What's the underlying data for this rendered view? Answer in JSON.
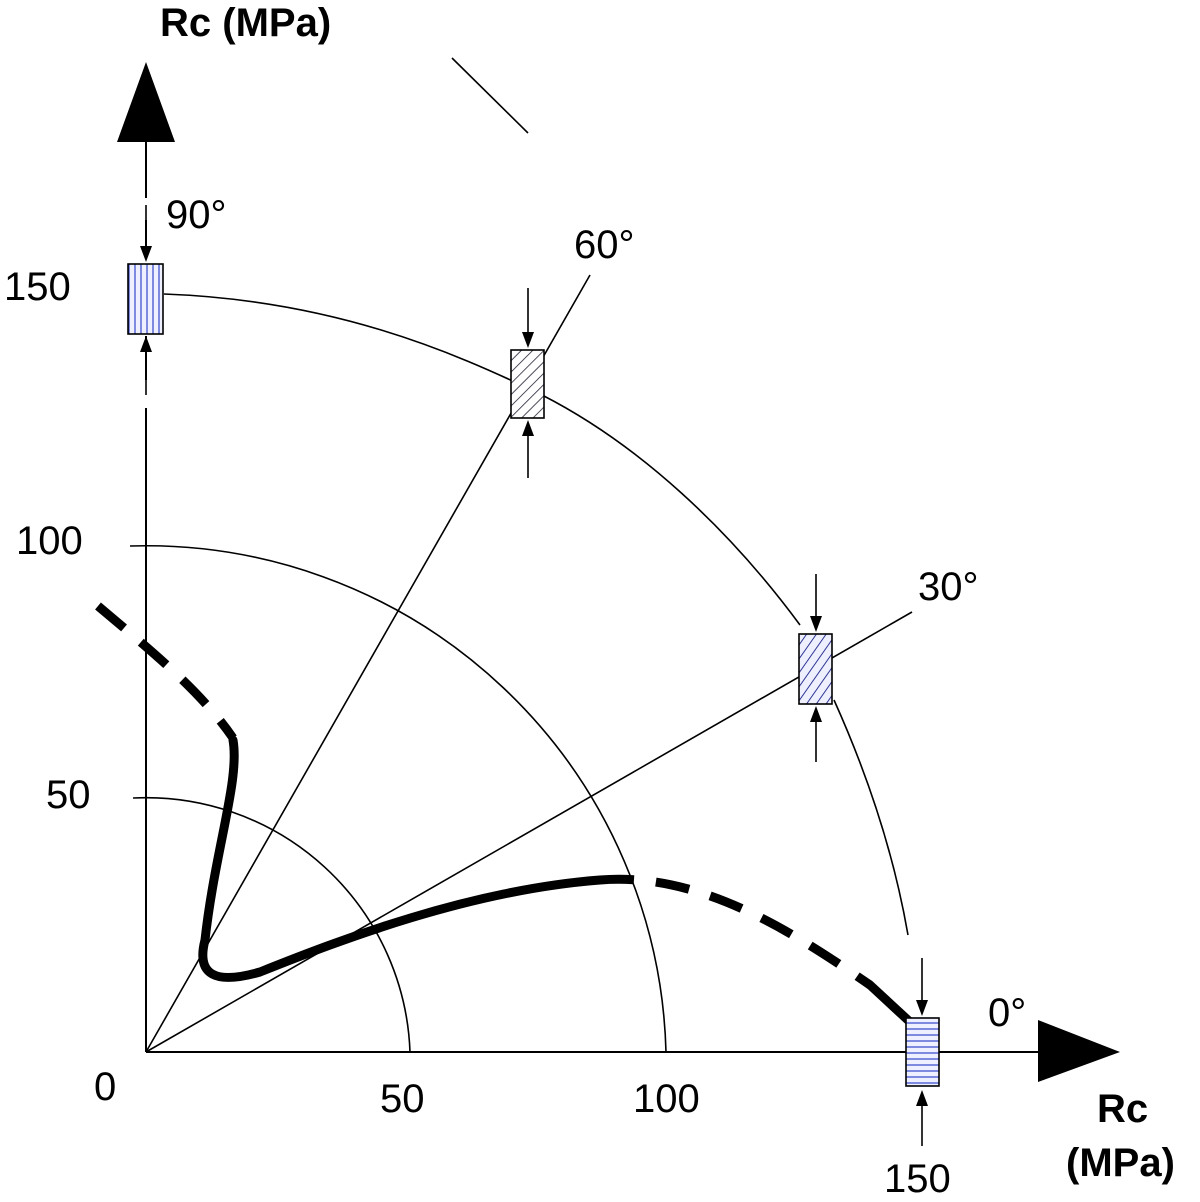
{
  "axes": {
    "y_title": "Rc (MPa)",
    "x_title_line1": "Rc",
    "x_title_line2": "(MPa)",
    "origin_label": "0"
  },
  "ticks": {
    "y": [
      "50",
      "100",
      "150"
    ],
    "x": [
      "50",
      "100",
      "150"
    ]
  },
  "angles": [
    "0°",
    "30°",
    "60°",
    "90°"
  ],
  "colors": {
    "line": "#000000",
    "specimen_hatch_blue": "#3344cc",
    "specimen_fill": "#eef0ff",
    "specimen_hatch_dark": "#222233"
  }
}
